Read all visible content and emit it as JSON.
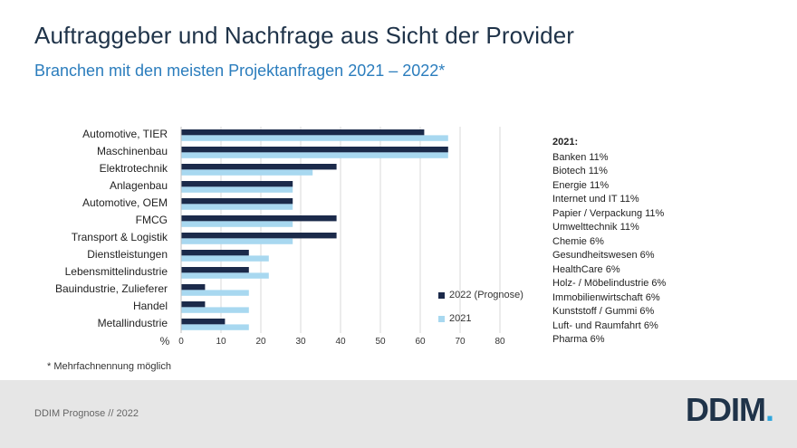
{
  "title": "Auftraggeber und Nachfrage aus Sicht der Provider",
  "subtitle": "Branchen mit den meisten Projektanfragen 2021 – 2022*",
  "footnote": "* Mehrfachnennung möglich",
  "footer": {
    "text": "DDIM Prognose // 2022",
    "logo": "DDIM",
    "logo_dot": "."
  },
  "colors": {
    "s2022": "#1b2a4a",
    "s2021": "#a8d8f0",
    "grid": "#d9d9d9"
  },
  "chart_data": {
    "type": "bar",
    "orientation": "horizontal",
    "title": "Branchen mit den meisten Projektanfragen 2021 – 2022*",
    "xlabel": "%",
    "xlim": [
      0,
      80
    ],
    "xticks": [
      0,
      10,
      20,
      30,
      40,
      50,
      60,
      70,
      80
    ],
    "grid": "vertical",
    "legend_position": "right",
    "categories": [
      "Automotive, TIER",
      "Maschinenbau",
      "Elektrotechnik",
      "Anlagenbau",
      "Automotive, OEM",
      "FMCG",
      "Transport & Logistik",
      "Dienstleistungen",
      "Lebensmittelindustrie",
      "Bauindustrie, Zulieferer",
      "Handel",
      "Metallindustrie"
    ],
    "series": [
      {
        "name": "2022 (Prognose)",
        "values": [
          61,
          67,
          39,
          28,
          28,
          39,
          39,
          17,
          17,
          6,
          6,
          11
        ]
      },
      {
        "name": "2021",
        "values": [
          67,
          67,
          33,
          28,
          28,
          28,
          28,
          22,
          22,
          17,
          17,
          17
        ]
      }
    ]
  },
  "side_panel": {
    "header": "2021:",
    "items": [
      "Banken 11%",
      "Biotech 11%",
      "Energie 11%",
      "Internet und IT 11%",
      "Papier / Verpackung 11%",
      "Umwelttechnik 11%",
      "Chemie 6%",
      "Gesundheitswesen 6%",
      "HealthCare 6%",
      "Holz- / Möbelindustrie 6%",
      "Immobilienwirtschaft 6%",
      "Kunststoff / Gummi 6%",
      "Luft- und Raumfahrt 6%",
      "Pharma 6%"
    ]
  }
}
